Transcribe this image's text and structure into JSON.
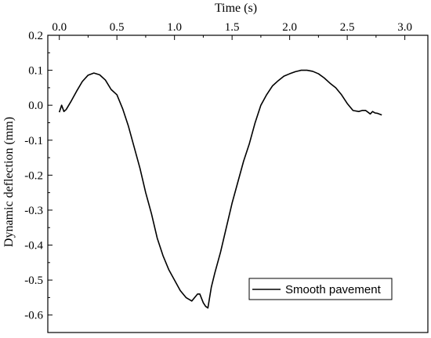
{
  "chart_data": {
    "type": "line",
    "xlabel": "Time (s)",
    "ylabel": "Dynamic deflection (mm)",
    "x_axis_position": "top",
    "xlim": [
      -0.1,
      3.2
    ],
    "ylim": [
      -0.65,
      0.2
    ],
    "xticks": [
      0.0,
      0.5,
      1.0,
      1.5,
      2.0,
      2.5,
      3.0
    ],
    "xtick_labels": [
      "0.0",
      "0.5",
      "1.0",
      "1.5",
      "2.0",
      "2.5",
      "3.0"
    ],
    "yticks": [
      0.2,
      0.1,
      0.0,
      -0.1,
      -0.2,
      -0.3,
      -0.4,
      -0.5,
      -0.6
    ],
    "ytick_labels": [
      "0.2",
      "0.1",
      "0.0",
      "-0.1",
      "-0.2",
      "-0.3",
      "-0.4",
      "-0.5",
      "-0.6"
    ],
    "grid": false,
    "legend_position": "bottom-right",
    "series": [
      {
        "name": "Smooth pavement",
        "color": "#000000",
        "x": [
          0.0,
          0.02,
          0.04,
          0.06,
          0.1,
          0.15,
          0.2,
          0.25,
          0.3,
          0.35,
          0.4,
          0.45,
          0.5,
          0.55,
          0.6,
          0.65,
          0.7,
          0.75,
          0.8,
          0.85,
          0.9,
          0.95,
          1.0,
          1.05,
          1.1,
          1.15,
          1.2,
          1.22,
          1.25,
          1.27,
          1.29,
          1.3,
          1.32,
          1.35,
          1.4,
          1.45,
          1.5,
          1.55,
          1.6,
          1.65,
          1.7,
          1.75,
          1.8,
          1.85,
          1.9,
          1.95,
          2.0,
          2.05,
          2.1,
          2.15,
          2.2,
          2.25,
          2.3,
          2.35,
          2.4,
          2.45,
          2.5,
          2.55,
          2.6,
          2.63,
          2.66,
          2.7,
          2.72,
          2.74,
          2.76,
          2.8
        ],
        "y": [
          -0.02,
          0.0,
          -0.018,
          -0.012,
          0.01,
          0.04,
          0.068,
          0.086,
          0.092,
          0.087,
          0.072,
          0.045,
          0.03,
          -0.01,
          -0.06,
          -0.12,
          -0.18,
          -0.25,
          -0.31,
          -0.38,
          -0.43,
          -0.47,
          -0.5,
          -0.53,
          -0.55,
          -0.56,
          -0.54,
          -0.54,
          -0.565,
          -0.575,
          -0.58,
          -0.56,
          -0.52,
          -0.48,
          -0.42,
          -0.35,
          -0.28,
          -0.22,
          -0.16,
          -0.11,
          -0.05,
          0.0,
          0.03,
          0.055,
          0.07,
          0.083,
          0.09,
          0.096,
          0.1,
          0.1,
          0.097,
          0.09,
          0.078,
          0.063,
          0.05,
          0.03,
          0.005,
          -0.015,
          -0.018,
          -0.015,
          -0.015,
          -0.025,
          -0.018,
          -0.022,
          -0.023,
          -0.028
        ]
      }
    ]
  }
}
